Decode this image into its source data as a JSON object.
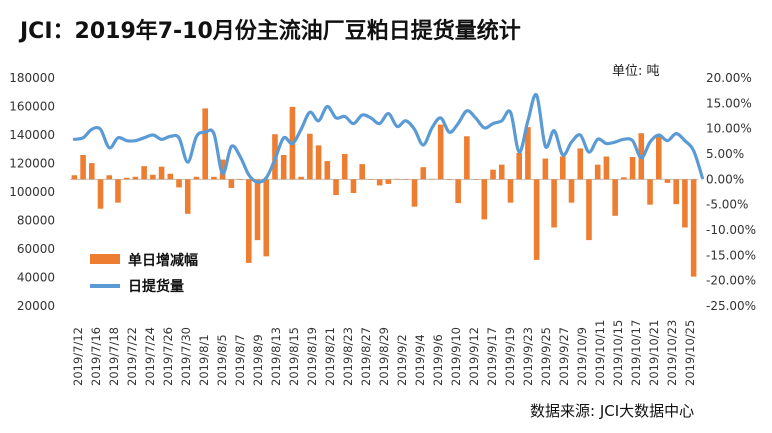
{
  "header": {
    "title": "JCI：2019年7-10月份主流油厂豆粕日提货量统计",
    "unit": "单位:  吨",
    "source": "数据来源:  JCI大数据中心"
  },
  "colors": {
    "bar": "#ED7D31",
    "line": "#5B9BD5"
  },
  "chart_data": {
    "type": "bar+line",
    "left_axis": {
      "min": 20000,
      "max": 180000,
      "ticks": [
        "20000",
        "40000",
        "60000",
        "80000",
        "100000",
        "120000",
        "140000",
        "160000",
        "180000"
      ]
    },
    "right_axis": {
      "min": -25,
      "max": 20,
      "ticks": [
        "20.00%",
        "15.00%",
        "10.00%",
        "5.00%",
        "0.00%",
        "-5.00%",
        "-10.00%",
        "-15.00%",
        "-20.00%",
        "-25.00%"
      ]
    },
    "x_tick_labels": [
      "2019/7/12",
      "2019/7/16",
      "2019/7/18",
      "2019/7/22",
      "2019/7/24",
      "2019/7/26",
      "2019/7/30",
      "2019/8/1",
      "2019/8/5",
      "2019/8/7",
      "2019/8/9",
      "2019/8/13",
      "2019/8/15",
      "2019/8/19",
      "2019/8/21",
      "2019/8/23",
      "2019/8/27",
      "2019/8/29",
      "2019/9/2",
      "2019/9/4",
      "2019/9/6",
      "2019/9/10",
      "2019/9/12",
      "2019/9/17",
      "2019/9/19",
      "2019/9/23",
      "2019/9/25",
      "2019/9/27",
      "2019/10/9",
      "2019/10/11",
      "2019/10/15",
      "2019/10/17",
      "2019/10/21",
      "2019/10/23",
      "2019/10/25"
    ],
    "series": [
      {
        "name": "单日增减幅",
        "type": "bar",
        "axis": "right",
        "values": [
          0.8,
          4.8,
          3.2,
          -5.8,
          0.8,
          -4.6,
          0.3,
          0.5,
          2.6,
          0.9,
          2.5,
          1.1,
          -1.6,
          -6.8,
          0.5,
          14.0,
          0.5,
          3.9,
          -1.7,
          0,
          -16.5,
          -12.0,
          -15.2,
          8.9,
          4.8,
          14.3,
          0.5,
          9.0,
          6.7,
          3.6,
          -3.1,
          5.0,
          -2.7,
          3.0,
          0,
          -1.2,
          -0.9,
          0.1,
          0,
          -5.4,
          2.4,
          0.1,
          10.8,
          0,
          -4.7,
          8.5,
          0,
          -7.9,
          1.9,
          2.9,
          -4.6,
          5.2,
          10.3,
          -15.9,
          4.1,
          -9.5,
          4.5,
          -4.6,
          6.1,
          -12.0,
          2.9,
          4.5,
          -7.2,
          0.4,
          4.4,
          9.1,
          -5.0,
          8.5,
          -0.7,
          -4.9,
          -9.5,
          -19.2
        ]
      },
      {
        "name": "日提货量",
        "type": "line",
        "axis": "left",
        "values": [
          137000,
          138000,
          144000,
          144000,
          131000,
          138000,
          136000,
          136000,
          138000,
          140000,
          137000,
          139000,
          138000,
          121000,
          139000,
          142000,
          141000,
          113000,
          132000,
          125000,
          112000,
          107000,
          110000,
          123000,
          138000,
          134000,
          144000,
          156000,
          150000,
          160000,
          152000,
          153000,
          148000,
          154000,
          152000,
          148000,
          155000,
          146000,
          150000,
          144000,
          133000,
          145000,
          152000,
          142000,
          148000,
          157000,
          152000,
          145000,
          148000,
          150000,
          156000,
          128000,
          150000,
          168000,
          132000,
          143000,
          126000,
          135000,
          140000,
          128000,
          137000,
          134000,
          135000,
          137000,
          136000,
          124000,
          135000,
          140000,
          136000,
          141000,
          136000,
          129000,
          110000
        ]
      }
    ],
    "legend": "inside-left"
  }
}
